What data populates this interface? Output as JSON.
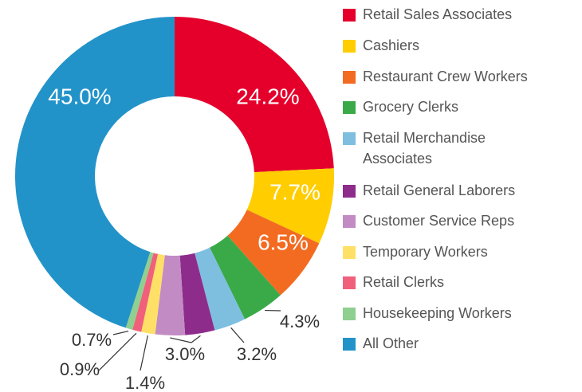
{
  "chart_data": {
    "type": "donut",
    "categories": [
      "Retail Sales Associates",
      "Cashiers",
      "Restaurant Crew Workers",
      "Grocery Clerks",
      "Retail Merchandise Associates",
      "Retail General Laborers",
      "Customer Service Reps",
      "Temporary Workers",
      "Retail Clerks",
      "Housekeeping Workers",
      "All Other"
    ],
    "values": [
      24.2,
      7.7,
      6.5,
      4.3,
      3.2,
      3.0,
      3.0,
      1.4,
      0.9,
      0.7,
      45.0
    ],
    "value_labels": [
      "24.2%",
      "7.7%",
      "6.5%",
      "4.3%",
      "3.2%",
      "3.0%",
      null,
      "1.4%",
      "0.9%",
      "0.7%",
      "45.0%"
    ],
    "colors": [
      "#e4002b",
      "#ffcd00",
      "#f36b21",
      "#3aaa49",
      "#7ebfe0",
      "#8e2c8c",
      "#c28bc4",
      "#ffe066",
      "#f0607a",
      "#8fcf8f",
      "#2293c9"
    ],
    "legend": "right"
  }
}
